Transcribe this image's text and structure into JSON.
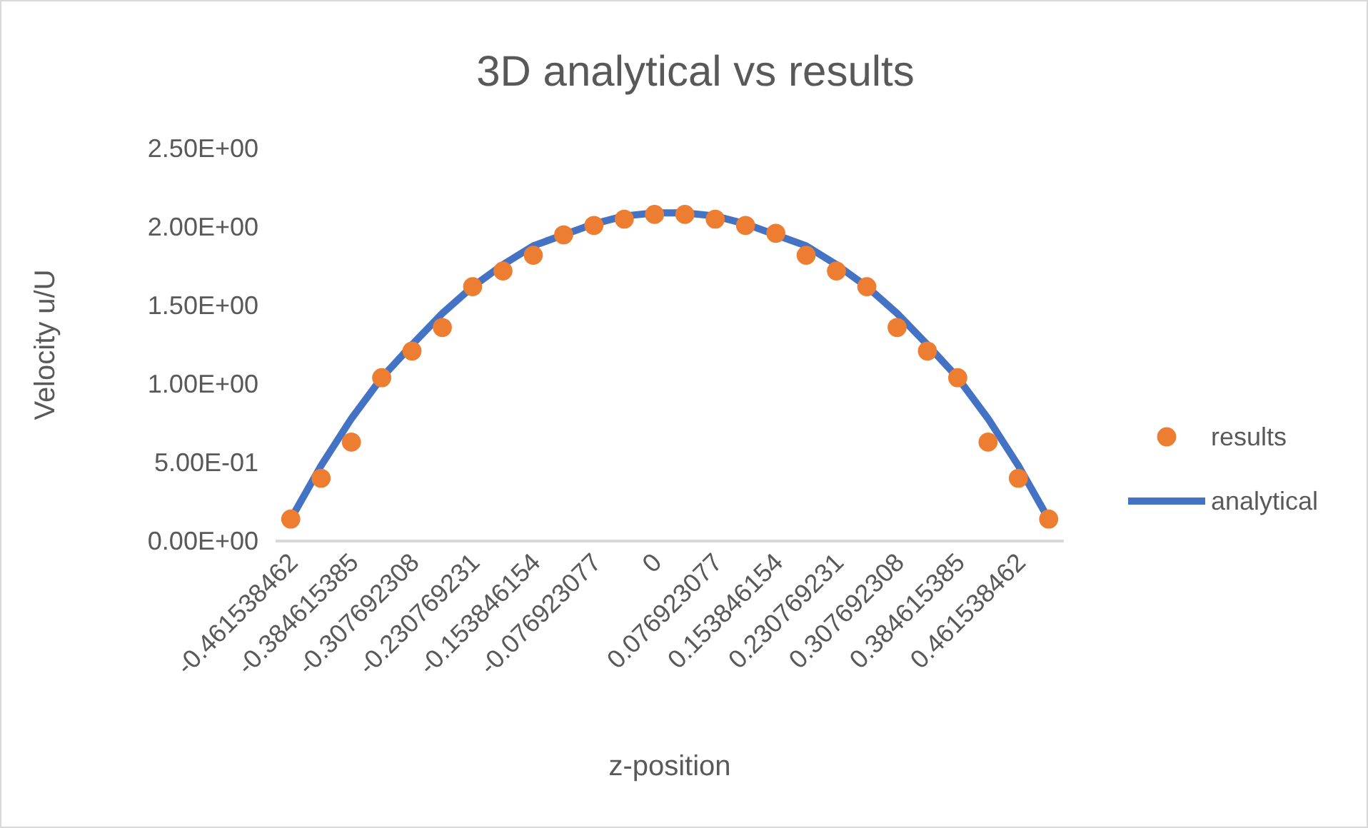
{
  "chart_data": {
    "type": "line",
    "title": "3D analytical vs results",
    "xlabel": "z-position",
    "ylabel": "Velocity u/U",
    "categories": [
      "-0.461538462",
      null,
      "-0.384615385",
      null,
      "-0.307692308",
      null,
      "-0.230769231",
      null,
      "-0.153846154",
      null,
      "-0.076923077",
      null,
      "0",
      null,
      "0.076923077",
      null,
      "0.153846154",
      null,
      "0.230769231",
      null,
      "0.307692308",
      null,
      "0.384615385",
      null,
      "0.461538462",
      null
    ],
    "series": [
      {
        "name": "results",
        "type": "scatter",
        "marker": "circle",
        "color": "#ed7d31",
        "values": [
          0.14,
          0.4,
          0.63,
          1.04,
          1.21,
          1.36,
          1.62,
          1.72,
          1.82,
          1.95,
          2.01,
          2.05,
          2.08,
          2.08,
          2.05,
          2.01,
          1.96,
          1.82,
          1.72,
          1.62,
          1.36,
          1.21,
          1.04,
          0.63,
          0.4,
          0.14
        ]
      },
      {
        "name": "analytical",
        "marker": "none",
        "color": "#4472c4",
        "values": [
          0.14,
          0.48,
          0.78,
          1.04,
          1.25,
          1.45,
          1.62,
          1.76,
          1.88,
          1.95,
          2.02,
          2.07,
          2.09,
          2.09,
          2.07,
          2.02,
          1.95,
          1.88,
          1.76,
          1.62,
          1.45,
          1.25,
          1.04,
          0.78,
          0.48,
          0.14
        ]
      }
    ],
    "ylim": [
      0,
      2.5
    ],
    "yticks": [
      {
        "value": 0,
        "label": "0.00E+00"
      },
      {
        "value": 0.5,
        "label": "5.00E-01"
      },
      {
        "value": 1,
        "label": "1.00E+00"
      },
      {
        "value": 1.5,
        "label": "1.50E+00"
      },
      {
        "value": 2,
        "label": "2.00E+00"
      },
      {
        "value": 2.5,
        "label": "2.50E+00"
      }
    ],
    "grid": false,
    "legend": "right"
  }
}
